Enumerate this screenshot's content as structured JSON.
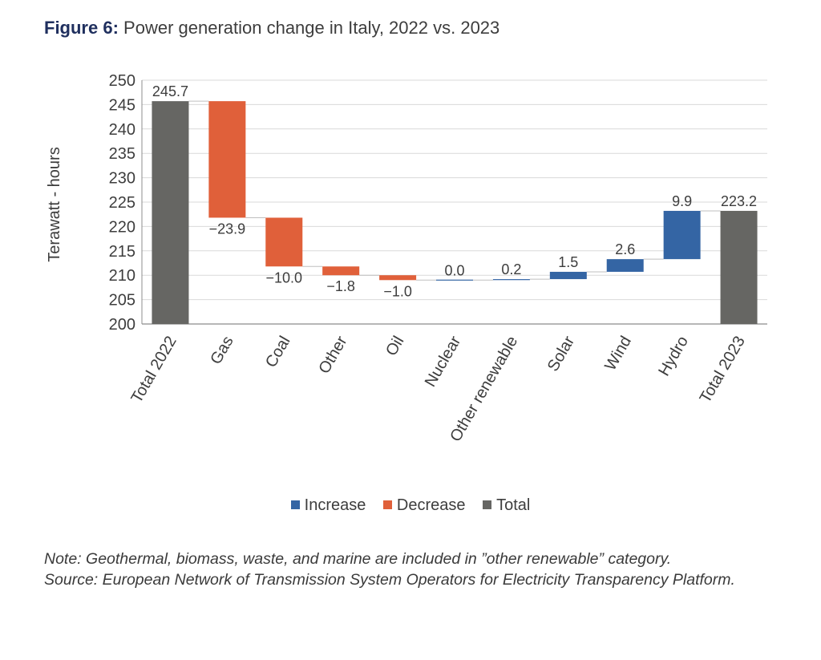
{
  "figure": {
    "label": "Figure 6:",
    "title": "Power generation change in Italy, 2022 vs. 2023"
  },
  "colors": {
    "increase": "#3465a4",
    "decrease": "#e0603a",
    "total": "#666663",
    "grid": "#d9d9d9",
    "axis": "#8c8c8c",
    "connector": "#bfbfbf"
  },
  "chart_data": {
    "type": "bar",
    "subtype": "waterfall",
    "ylabel": "Terawatt - hours",
    "ylim": [
      200,
      250
    ],
    "yticks": [
      200,
      205,
      210,
      215,
      220,
      225,
      230,
      235,
      240,
      245,
      250
    ],
    "grid": true,
    "legend_position": "bottom",
    "legend": [
      {
        "key": "increase",
        "label": "Increase"
      },
      {
        "key": "decrease",
        "label": "Decrease"
      },
      {
        "key": "total",
        "label": "Total"
      }
    ],
    "categories": [
      "Total 2022",
      "Gas",
      "Coal",
      "Other",
      "Oil",
      "Nuclear",
      "Other renewable",
      "Solar",
      "Wind",
      "Hydro",
      "Total 2023"
    ],
    "values": [
      245.7,
      -23.9,
      -10.0,
      -1.8,
      -1.0,
      0.0,
      0.2,
      1.5,
      2.6,
      9.9,
      223.2
    ],
    "kinds": [
      "total",
      "decrease",
      "decrease",
      "decrease",
      "decrease",
      "increase",
      "increase",
      "increase",
      "increase",
      "increase",
      "total"
    ],
    "data_labels": [
      "245.7",
      "−23.9",
      "−10.0",
      "−1.8",
      "−1.0",
      "0.0",
      "0.2",
      "1.5",
      "2.6",
      "9.9",
      "223.2"
    ]
  },
  "notes": {
    "note": "Note: Geothermal, biomass, waste, and marine are included in ”other renewable” category.",
    "source": "Source: European Network of Transmission System Operators for Electricity Transparency Platform."
  }
}
